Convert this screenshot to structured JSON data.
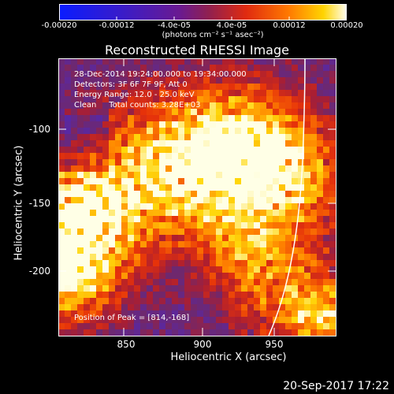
{
  "colorbar": {
    "ticks": [
      "-0.00020",
      "-0.00012",
      "-4.0e-05",
      "4.0e-05",
      "0.00012",
      "0.00020"
    ],
    "unit": "(photons cm⁻² s⁻¹ asec⁻²)",
    "range": [
      -0.0002,
      0.0002
    ]
  },
  "title": "Reconstructed RHESSI Image",
  "info": {
    "time": "28-Dec-2014 19:24:00.000 to 19:34:00.000",
    "detectors": "Detectors: 3F 6F 7F 9F, Att 0",
    "energy": "Energy Range: 12.0 - 25.0 keV",
    "clean": "Clean     Total counts: 3.28E+03",
    "peak": "Position of Peak = [814,-168]"
  },
  "axes": {
    "xlabel": "Heliocentric X (arcsec)",
    "ylabel": "Heliocentric Y (arcsec)",
    "xticks": [
      "850",
      "900",
      "950"
    ],
    "yticks": [
      "-100",
      "-150",
      "-200"
    ]
  },
  "timestamp": "20-Sep-2017 17:22",
  "colors": {
    "limb": "#ffffff",
    "background": "#000000"
  }
}
